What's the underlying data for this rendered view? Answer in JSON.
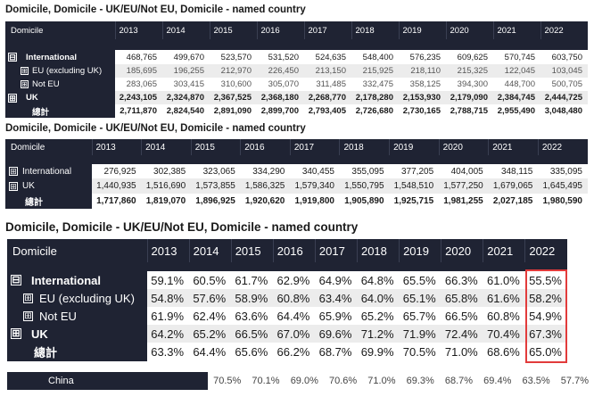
{
  "header": {
    "dimension": "Domicile"
  },
  "years": [
    "2013",
    "2014",
    "2015",
    "2016",
    "2017",
    "2018",
    "2019",
    "2020",
    "2021",
    "2022"
  ],
  "tables": [
    {
      "title": "Domicile, Domicile - UK/EU/Not EU, Domicile - named country",
      "rows": [
        {
          "label": "International",
          "toggle": "⊟",
          "values": [
            "468,765",
            "499,670",
            "523,570",
            "531,520",
            "524,635",
            "548,400",
            "576,235",
            "609,625",
            "570,745",
            "603,750"
          ]
        },
        {
          "label": "EU (excluding UK)",
          "toggle": "⊞",
          "values": [
            "185,695",
            "196,255",
            "212,970",
            "226,450",
            "213,150",
            "215,925",
            "218,110",
            "215,325",
            "122,045",
            "103,045"
          ]
        },
        {
          "label": "Not EU",
          "toggle": "⊞",
          "values": [
            "283,065",
            "303,415",
            "310,600",
            "305,070",
            "311,485",
            "332,475",
            "358,125",
            "394,300",
            "448,700",
            "500,705"
          ]
        },
        {
          "label": "UK",
          "toggle": "⊞",
          "values": [
            "2,243,105",
            "2,324,870",
            "2,367,525",
            "2,368,180",
            "2,268,770",
            "2,178,280",
            "2,153,930",
            "2,179,090",
            "2,384,745",
            "2,444,725"
          ]
        },
        {
          "label": "總計",
          "toggle": "",
          "values": [
            "2,711,870",
            "2,824,540",
            "2,891,090",
            "2,899,700",
            "2,793,405",
            "2,726,680",
            "2,730,165",
            "2,788,715",
            "2,955,490",
            "3,048,480"
          ]
        }
      ]
    },
    {
      "title": "Domicile, Domicile - UK/EU/Not EU, Domicile - named country",
      "rows": [
        {
          "label": "International",
          "toggle": "⊞",
          "values": [
            "276,925",
            "302,385",
            "323,065",
            "334,290",
            "340,455",
            "355,095",
            "377,205",
            "404,005",
            "348,115",
            "335,095"
          ]
        },
        {
          "label": "UK",
          "toggle": "⊞",
          "values": [
            "1,440,935",
            "1,516,690",
            "1,573,855",
            "1,586,325",
            "1,579,340",
            "1,550,795",
            "1,548,510",
            "1,577,250",
            "1,679,065",
            "1,645,495"
          ]
        },
        {
          "label": "總計",
          "toggle": "",
          "values": [
            "1,717,860",
            "1,819,070",
            "1,896,925",
            "1,920,620",
            "1,919,800",
            "1,905,890",
            "1,925,715",
            "1,981,255",
            "2,027,185",
            "1,980,590"
          ]
        }
      ]
    },
    {
      "title": "Domicile, Domicile - UK/EU/Not EU, Domicile - named country",
      "rows": [
        {
          "label": "International",
          "toggle": "⊟",
          "values": [
            "59.1%",
            "60.5%",
            "61.7%",
            "62.9%",
            "64.9%",
            "64.8%",
            "65.5%",
            "66.3%",
            "61.0%",
            "55.5%"
          ]
        },
        {
          "label": "EU (excluding UK)",
          "toggle": "⊞",
          "values": [
            "54.8%",
            "57.6%",
            "58.9%",
            "60.8%",
            "63.4%",
            "64.0%",
            "65.1%",
            "65.8%",
            "61.6%",
            "58.2%"
          ]
        },
        {
          "label": "Not EU",
          "toggle": "⊞",
          "values": [
            "61.9%",
            "62.4%",
            "63.6%",
            "64.4%",
            "65.9%",
            "65.2%",
            "65.7%",
            "66.5%",
            "60.8%",
            "54.9%"
          ]
        },
        {
          "label": "UK",
          "toggle": "⊞",
          "values": [
            "64.2%",
            "65.2%",
            "66.5%",
            "67.0%",
            "69.6%",
            "71.2%",
            "71.9%",
            "72.4%",
            "70.4%",
            "67.3%"
          ]
        },
        {
          "label": "總計",
          "toggle": "",
          "values": [
            "63.3%",
            "64.4%",
            "65.6%",
            "66.2%",
            "68.7%",
            "69.9%",
            "70.5%",
            "71.0%",
            "68.6%",
            "65.0%"
          ]
        }
      ]
    }
  ],
  "china_row": {
    "label": "China",
    "values": [
      "70.5%",
      "70.1%",
      "69.0%",
      "70.6%",
      "71.0%",
      "69.3%",
      "68.7%",
      "69.4%",
      "63.5%",
      "57.7%"
    ]
  }
}
